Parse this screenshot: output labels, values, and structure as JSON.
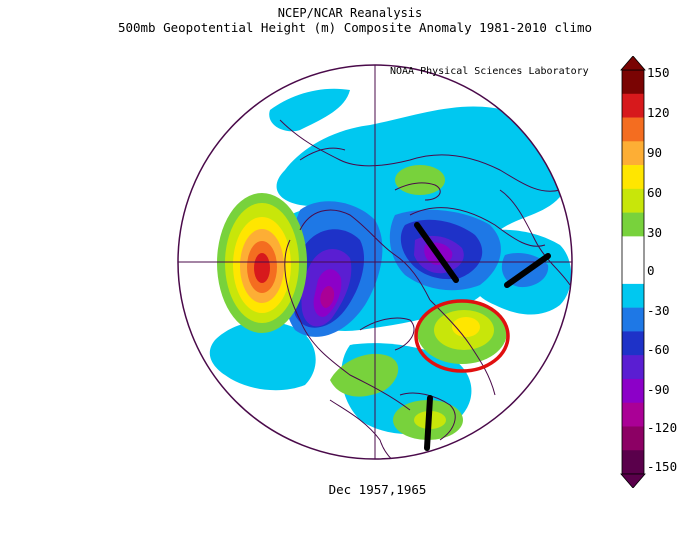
{
  "header": {
    "line1": "NCEP/NCAR Reanalysis",
    "line2": "500mb Geopotential Height (m) Composite Anomaly 1981-2010 climo",
    "credit": "NOAA Physical Sciences Laboratory"
  },
  "footer": {
    "dates": "Dec 1957,1965"
  },
  "colorbar": {
    "labels": [
      "150",
      "120",
      "90",
      "60",
      "30",
      "0",
      "-30",
      "-60",
      "-90",
      "-120",
      "-150"
    ],
    "colors": [
      "#7a0403",
      "#d7191c",
      "#f46d20",
      "#fdae35",
      "#ffe600",
      "#c8e60a",
      "#78d23c",
      "#ffffff",
      "#ffffff",
      "#00c8f0",
      "#1e78e6",
      "#1e32c8",
      "#5a1ed2",
      "#8c00c8",
      "#aa0096",
      "#8c0064",
      "#5a004b"
    ]
  },
  "annotations": {
    "circle_color": "#e01010",
    "line_color": "#000000"
  }
}
